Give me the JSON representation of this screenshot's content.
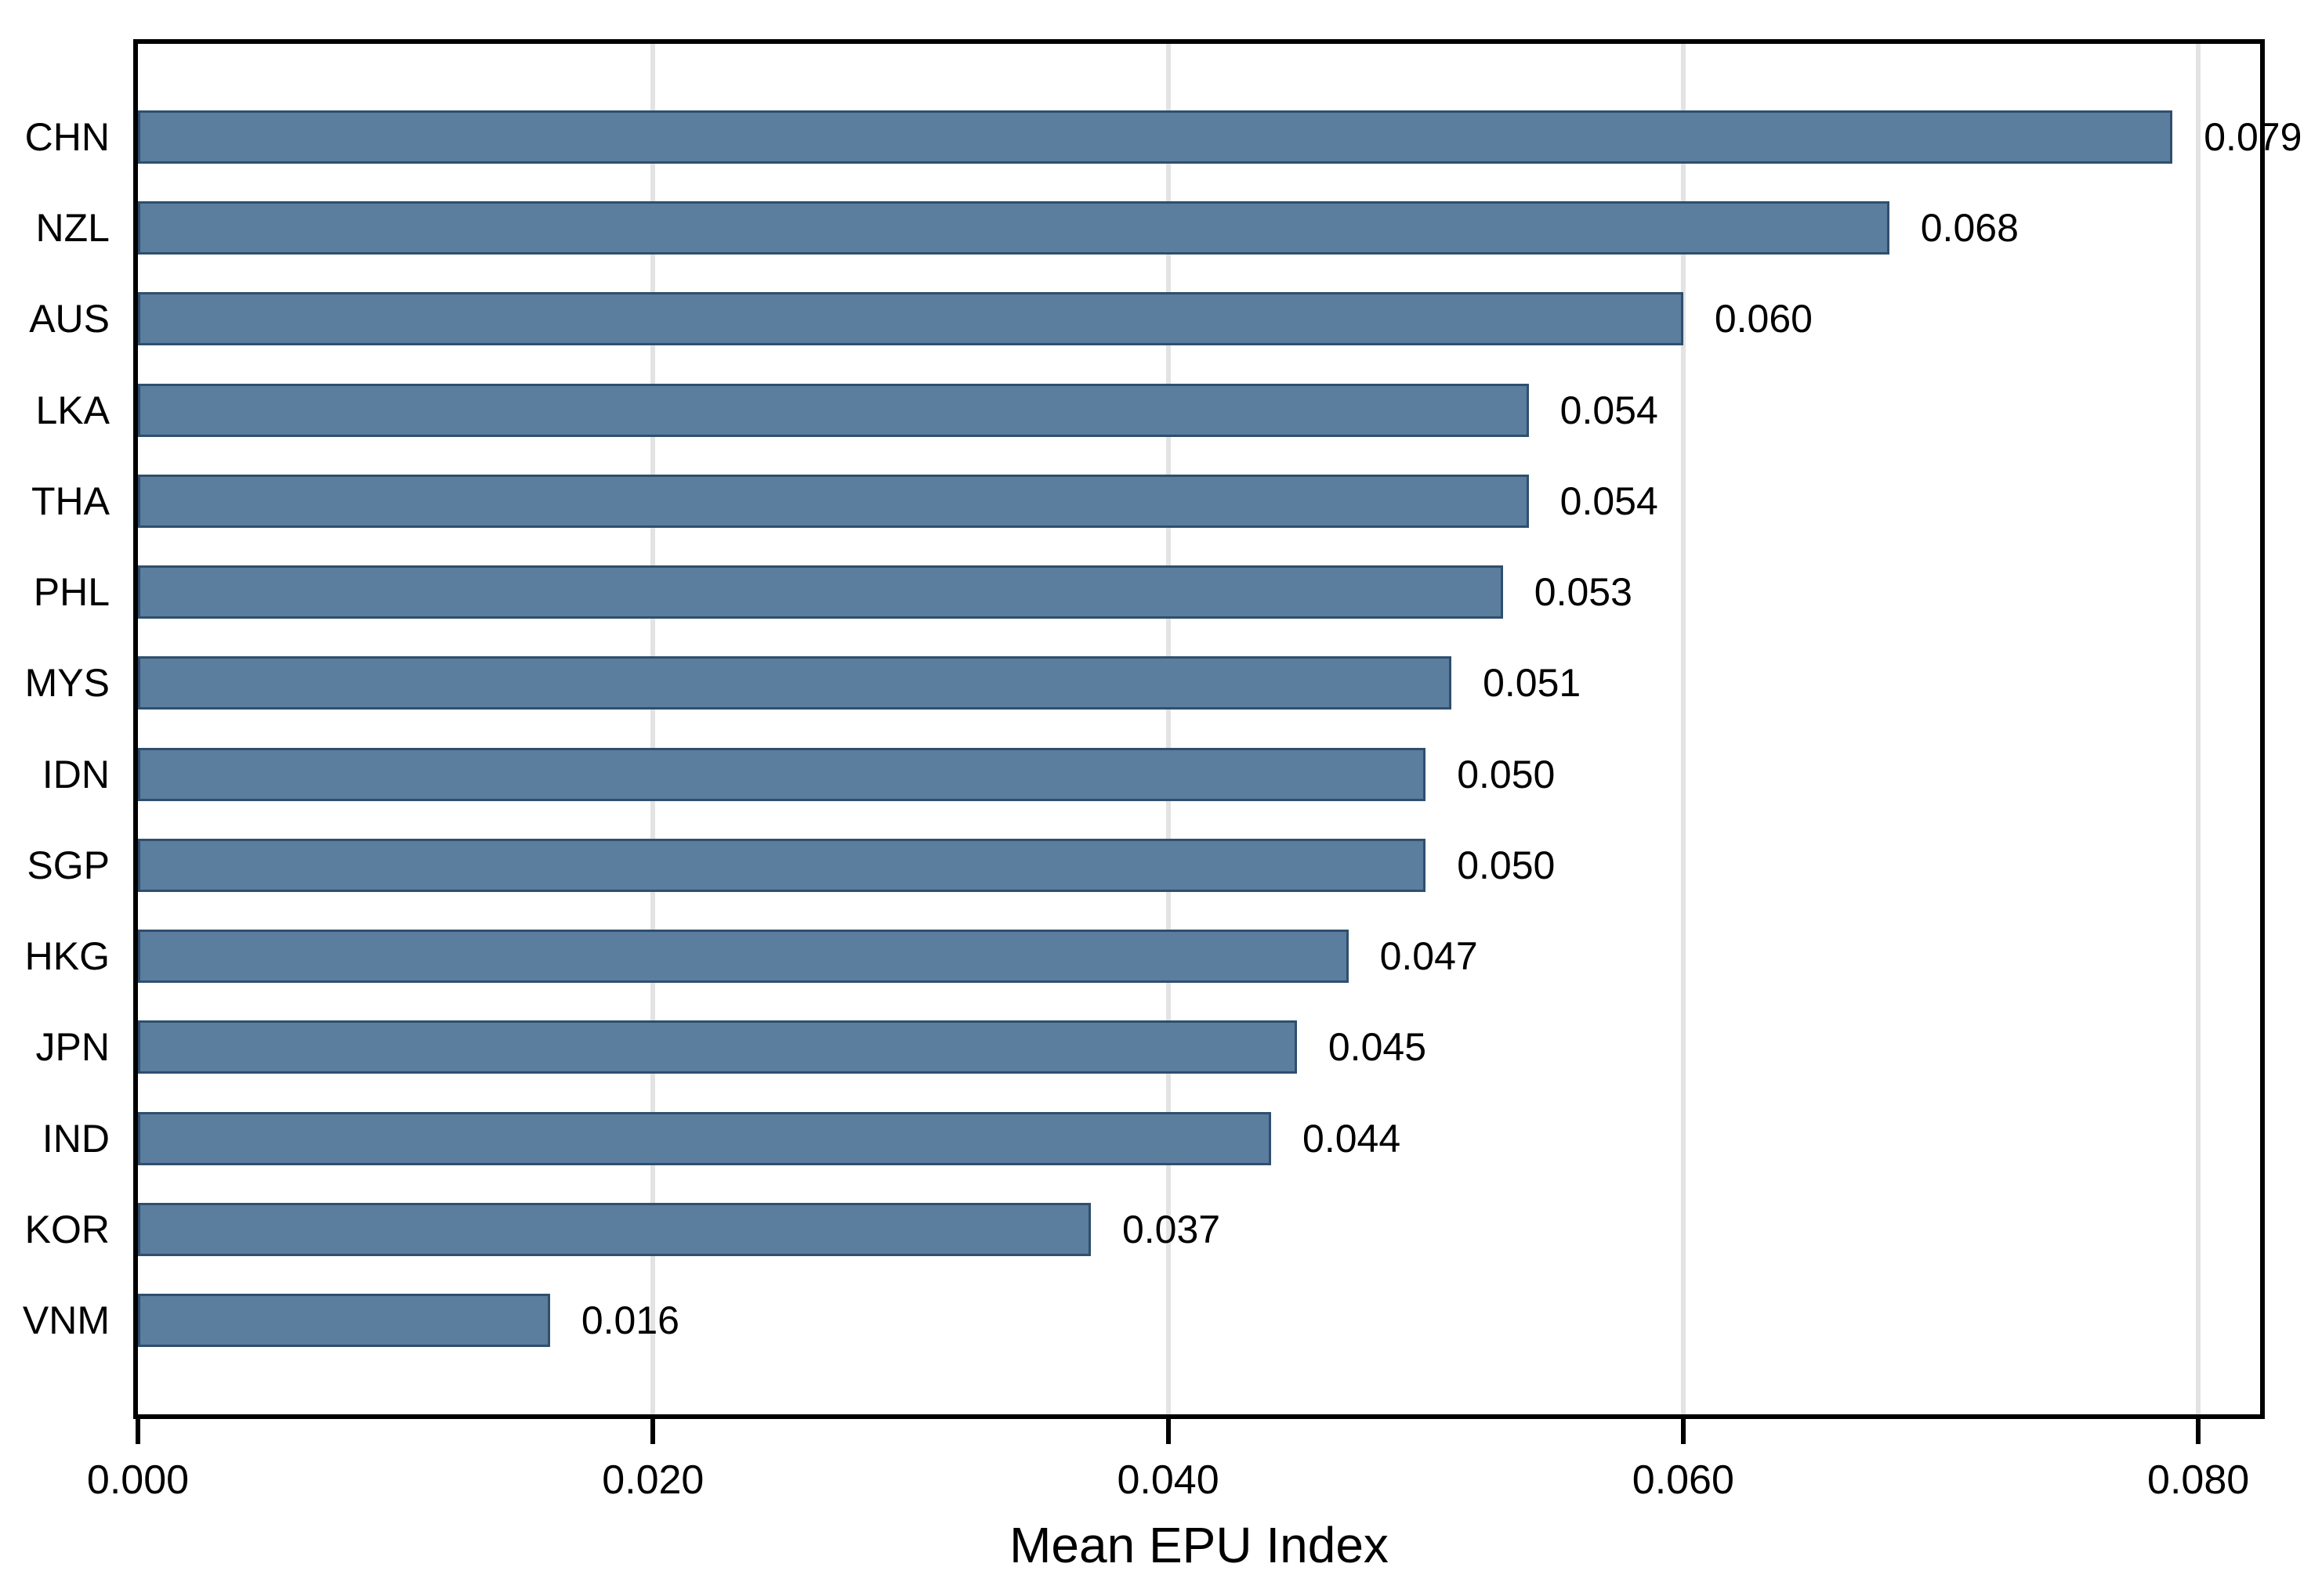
{
  "chart_data": {
    "type": "bar",
    "orientation": "horizontal",
    "title": "",
    "xlabel": "Mean EPU Index",
    "ylabel": "",
    "categories": [
      "CHN",
      "NZL",
      "AUS",
      "LKA",
      "THA",
      "PHL",
      "MYS",
      "IDN",
      "SGP",
      "HKG",
      "JPN",
      "IND",
      "KOR",
      "VNM"
    ],
    "values": [
      0.079,
      0.068,
      0.06,
      0.054,
      0.054,
      0.053,
      0.051,
      0.05,
      0.05,
      0.047,
      0.045,
      0.044,
      0.037,
      0.016
    ],
    "value_labels": [
      "0.079",
      "0.068",
      "0.060",
      "0.054",
      "0.054",
      "0.053",
      "0.051",
      "0.050",
      "0.050",
      "0.047",
      "0.045",
      "0.044",
      "0.037",
      "0.016"
    ],
    "xlim": [
      0,
      0.0824
    ],
    "x_ticks": [
      0,
      0.02,
      0.04,
      0.06,
      0.08
    ],
    "x_tick_labels": [
      "0.000",
      "0.020",
      "0.040",
      "0.060",
      "0.080"
    ],
    "grid": "vertical-ticks-only",
    "legend": "none",
    "colors": {
      "bar_fill": "#5b7d9e",
      "bar_border": "#2f4f6d",
      "gridline": "#e3e3e3",
      "spine": "#000000",
      "text": "#000000",
      "background": "#ffffff"
    }
  }
}
